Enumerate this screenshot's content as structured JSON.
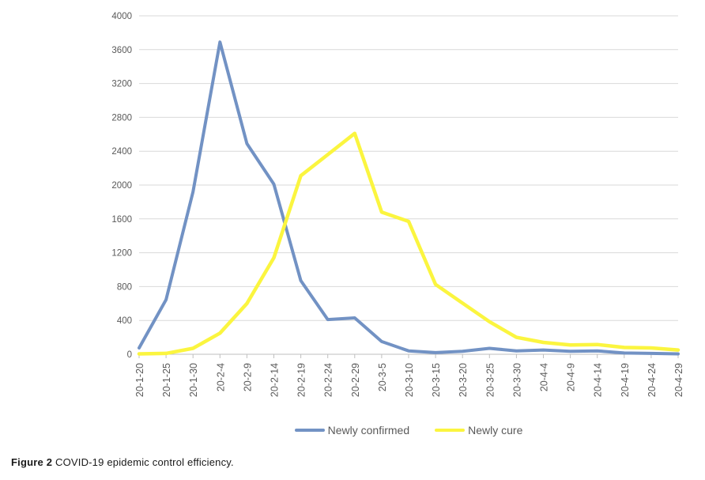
{
  "figure": {
    "caption_label": "Figure 2",
    "caption_text": " COVID-19 epidemic control efficiency."
  },
  "chart_data": {
    "type": "line",
    "title": "",
    "xlabel": "",
    "ylabel": "",
    "categories": [
      "20-1-20",
      "20-1-25",
      "20-1-30",
      "20-2-4",
      "20-2-9",
      "20-2-14",
      "20-2-19",
      "20-2-24",
      "20-2-29",
      "20-3-5",
      "20-3-10",
      "20-3-15",
      "20-3-20",
      "20-3-25",
      "20-3-30",
      "20-4-4",
      "20-4-9",
      "20-4-14",
      "20-4-19",
      "20-4-24",
      "20-4-29"
    ],
    "series": [
      {
        "name": "Newly confirmed",
        "color": "#7292C4",
        "width": 4,
        "values": [
          75,
          645,
          1920,
          3690,
          2490,
          2010,
          870,
          410,
          430,
          150,
          40,
          20,
          35,
          70,
          40,
          50,
          35,
          40,
          15,
          10,
          5
        ]
      },
      {
        "name": "Newly cure",
        "color": "#FBF53F",
        "width": 4.5,
        "values": [
          5,
          10,
          70,
          250,
          600,
          1140,
          2110,
          2360,
          2610,
          1680,
          1570,
          825,
          605,
          385,
          200,
          140,
          110,
          115,
          80,
          75,
          50
        ]
      }
    ],
    "ylim": [
      0,
      4000
    ],
    "yticks": [
      0,
      400,
      800,
      1200,
      1600,
      2000,
      2400,
      2800,
      3200,
      3600,
      4000
    ],
    "grid": "horizontal",
    "legend_position": "bottom",
    "colors": {
      "gridline": "#D9D9D9",
      "axis_line": "#BFBFBF",
      "tick_label": "#595959"
    }
  }
}
